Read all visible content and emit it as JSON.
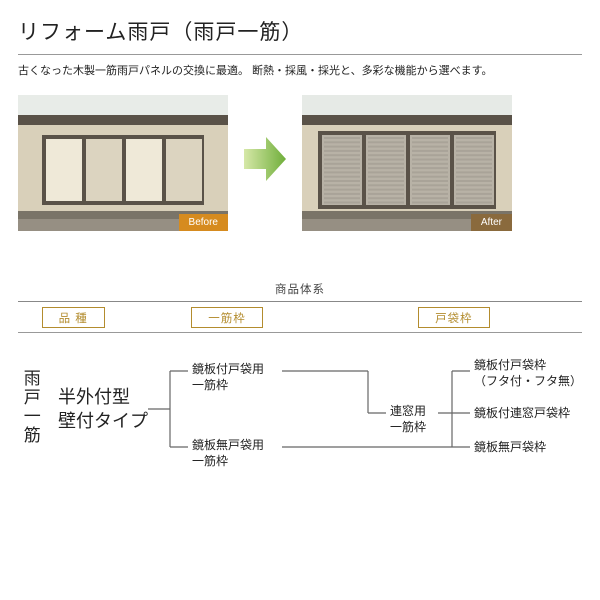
{
  "title": "リフォーム雨戸（雨戸一筋）",
  "description": "古くなった木製一筋雨戸パネルの交換に最適。\n断熱・採風・採光と、多彩な機能から選べます。",
  "before": {
    "label": "Before"
  },
  "after": {
    "label": "After"
  },
  "table": {
    "header": "商品体系",
    "cat1": "品 種",
    "cat2": "一筋枠",
    "cat3": "戸袋枠"
  },
  "tree": {
    "root_side": "雨戸一筋",
    "root_main": "半外付型\n壁付タイプ",
    "mid1": "鏡板付戸袋用\n一筋枠",
    "mid2": "鏡板無戸袋用\n一筋枠",
    "mid3": "連窓用\n一筋枠",
    "leaf1": "鏡板付戸袋枠\n（フタ付・フタ無）",
    "leaf2": "鏡板付連窓戸袋枠",
    "leaf3": "鏡板無戸袋枠"
  },
  "colors": {
    "arrow_start": "#d6e8a8",
    "arrow_end": "#6fae3a",
    "line": "#666"
  },
  "photo_before": {
    "sky": "#e8ece8",
    "eave": "#5a5248",
    "wall": "#d9d0ba",
    "win_a": "#efe9d8",
    "win_b": "#dcd4c0",
    "base": "#7a7468",
    "ground": "#968f83"
  },
  "photo_after": {
    "sky": "#e6eae6",
    "eave": "#5a5248",
    "wall": "#d9d0ba",
    "slat1": "#b8b2a6",
    "slat2": "#a9a398",
    "base": "#7a7468",
    "ground": "#968f83"
  }
}
